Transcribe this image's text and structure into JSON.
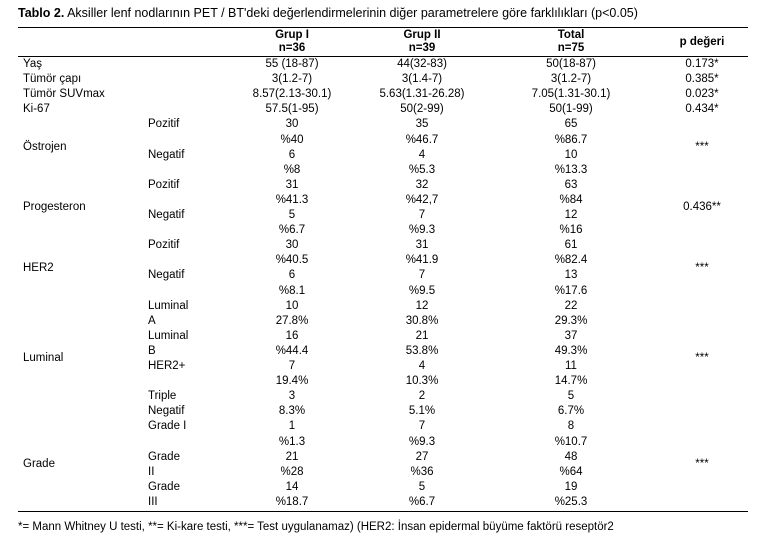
{
  "caption": {
    "label": "Tablo 2.",
    "text": " Aksiller lenf nodlarının PET / BT'deki değerlendirmelerinin diğer parametrelere göre farklılıkları (p<0.05)"
  },
  "headers": {
    "grup1": "Grup I",
    "grup1_n": "n=36",
    "grup2": "Grup II",
    "grup2_n": "n=39",
    "total": "Total",
    "total_n": "n=75",
    "p": "p değeri"
  },
  "simple_rows": [
    {
      "label": "Yaş",
      "g1": "55 (18-87)",
      "g2": "44(32-83)",
      "t": "50(18-87)",
      "p": "0.173*"
    },
    {
      "label": "Tümör çapı",
      "g1": "3(1.2-7)",
      "g2": "3(1.4-7)",
      "t": "3(1.2-7)",
      "p": "0.385*"
    },
    {
      "label": "Tümör SUVmax",
      "g1": "8.57(2.13-30.1)",
      "g2": "5.63(1.31-26.28)",
      "t": "7.05(1.31-30.1)",
      "p": "0.023*"
    },
    {
      "label": "Ki-67",
      "g1": "57.5(1-95)",
      "g2": "50(2-99)",
      "t": "50(1-99)",
      "p": "0.434*"
    }
  ],
  "groups": [
    {
      "label": "Östrojen",
      "p": "***",
      "sub": [
        {
          "l1": "Pozitif",
          "l2": "",
          "g1": [
            "30",
            "%40"
          ],
          "g2": [
            "35",
            "%46.7"
          ],
          "t": [
            "65",
            "%86.7"
          ]
        },
        {
          "l1": "Negatif",
          "l2": "",
          "g1": [
            "6",
            "%8"
          ],
          "g2": [
            "4",
            "%5.3"
          ],
          "t": [
            "10",
            "%13.3"
          ]
        }
      ]
    },
    {
      "label": "Progesteron",
      "p": "0.436**",
      "sub": [
        {
          "l1": "Pozitif",
          "l2": "",
          "g1": [
            "31",
            "%41.3"
          ],
          "g2": [
            "32",
            "%42,7"
          ],
          "t": [
            "63",
            "%84"
          ]
        },
        {
          "l1": "Negatif",
          "l2": "",
          "g1": [
            "5",
            "%6.7"
          ],
          "g2": [
            "7",
            "%9.3"
          ],
          "t": [
            "12",
            "%16"
          ]
        }
      ]
    },
    {
      "label": "HER2",
      "p": "***",
      "sub": [
        {
          "l1": "Pozitif",
          "l2": "",
          "g1": [
            "30",
            "%40.5"
          ],
          "g2": [
            "31",
            "%41.9"
          ],
          "t": [
            "61",
            "%82.4"
          ]
        },
        {
          "l1": "Negatif",
          "l2": "",
          "g1": [
            "6",
            "%8.1"
          ],
          "g2": [
            "7",
            "%9.5"
          ],
          "t": [
            "13",
            "%17.6"
          ]
        }
      ]
    },
    {
      "label": "Luminal",
      "p": "***",
      "sub": [
        {
          "l1": "Luminal",
          "l2": "A",
          "g1": [
            "10",
            "27.8%"
          ],
          "g2": [
            "12",
            "30.8%"
          ],
          "t": [
            "22",
            "29.3%"
          ]
        },
        {
          "l1": "Luminal",
          "l2": "B",
          "g1": [
            "16",
            "%44.4"
          ],
          "g2": [
            "21",
            "53.8%"
          ],
          "t": [
            "37",
            "49.3%"
          ]
        },
        {
          "l1": "HER2+",
          "l2": "",
          "g1": [
            "7",
            "19.4%"
          ],
          "g2": [
            "4",
            "10.3%"
          ],
          "t": [
            "11",
            "14.7%"
          ]
        },
        {
          "l1": "Triple",
          "l2": "Negatif",
          "g1": [
            "3",
            "8.3%"
          ],
          "g2": [
            "2",
            "5.1%"
          ],
          "t": [
            "5",
            "6.7%"
          ]
        }
      ]
    },
    {
      "label": "Grade",
      "p": "***",
      "sub": [
        {
          "l1": "Grade I",
          "l2": "",
          "g1": [
            "1",
            "%1.3"
          ],
          "g2": [
            "7",
            "%9.3"
          ],
          "t": [
            "8",
            "%10.7"
          ]
        },
        {
          "l1": "Grade",
          "l2": "II",
          "g1": [
            "21",
            "%28"
          ],
          "g2": [
            "27",
            "%36"
          ],
          "t": [
            "48",
            "%64"
          ]
        },
        {
          "l1": "Grade",
          "l2": "III",
          "g1": [
            "14",
            "%18.7"
          ],
          "g2": [
            "5",
            "%6.7"
          ],
          "t": [
            "19",
            "%25.3"
          ]
        }
      ]
    }
  ],
  "footnote": "*= Mann Whitney U testi, **= Ki-kare testi, ***= Test uygulanamaz) (HER2: İnsan epidermal büyüme faktörü reseptör2"
}
